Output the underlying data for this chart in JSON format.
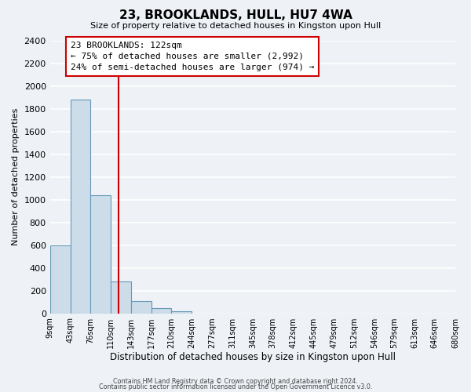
{
  "title": "23, BROOKLANDS, HULL, HU7 4WA",
  "subtitle": "Size of property relative to detached houses in Kingston upon Hull",
  "xlabel": "Distribution of detached houses by size in Kingston upon Hull",
  "ylabel": "Number of detached properties",
  "bar_edges": [
    9,
    43,
    76,
    110,
    143,
    177,
    210,
    244,
    277,
    311,
    345,
    378,
    412,
    445,
    479,
    512,
    546,
    579,
    613,
    646,
    680
  ],
  "bar_heights": [
    600,
    1880,
    1040,
    280,
    110,
    45,
    20,
    0,
    0,
    0,
    0,
    0,
    0,
    0,
    0,
    0,
    0,
    0,
    0,
    0
  ],
  "bar_color": "#ccdce8",
  "bar_edge_color": "#6699bb",
  "vline_x": 122,
  "vline_color": "#cc0000",
  "annotation_title": "23 BROOKLANDS: 122sqm",
  "annotation_line1": "← 75% of detached houses are smaller (2,992)",
  "annotation_line2": "24% of semi-detached houses are larger (974) →",
  "annotation_box_facecolor": "#ffffff",
  "annotation_box_edgecolor": "#cc0000",
  "ylim": [
    0,
    2400
  ],
  "yticks": [
    0,
    200,
    400,
    600,
    800,
    1000,
    1200,
    1400,
    1600,
    1800,
    2000,
    2200,
    2400
  ],
  "tick_labels": [
    "9sqm",
    "43sqm",
    "76sqm",
    "110sqm",
    "143sqm",
    "177sqm",
    "210sqm",
    "244sqm",
    "277sqm",
    "311sqm",
    "345sqm",
    "378sqm",
    "412sqm",
    "445sqm",
    "479sqm",
    "512sqm",
    "546sqm",
    "579sqm",
    "613sqm",
    "646sqm",
    "680sqm"
  ],
  "footer_line1": "Contains HM Land Registry data © Crown copyright and database right 2024.",
  "footer_line2": "Contains public sector information licensed under the Open Government Licence v3.0.",
  "background_color": "#eef2f7",
  "grid_color": "#ffffff",
  "title_fontsize": 11,
  "subtitle_fontsize": 8,
  "ylabel_fontsize": 8,
  "xlabel_fontsize": 8.5,
  "ytick_fontsize": 8,
  "xtick_fontsize": 7,
  "footer_fontsize": 5.8,
  "annot_fontsize": 8
}
